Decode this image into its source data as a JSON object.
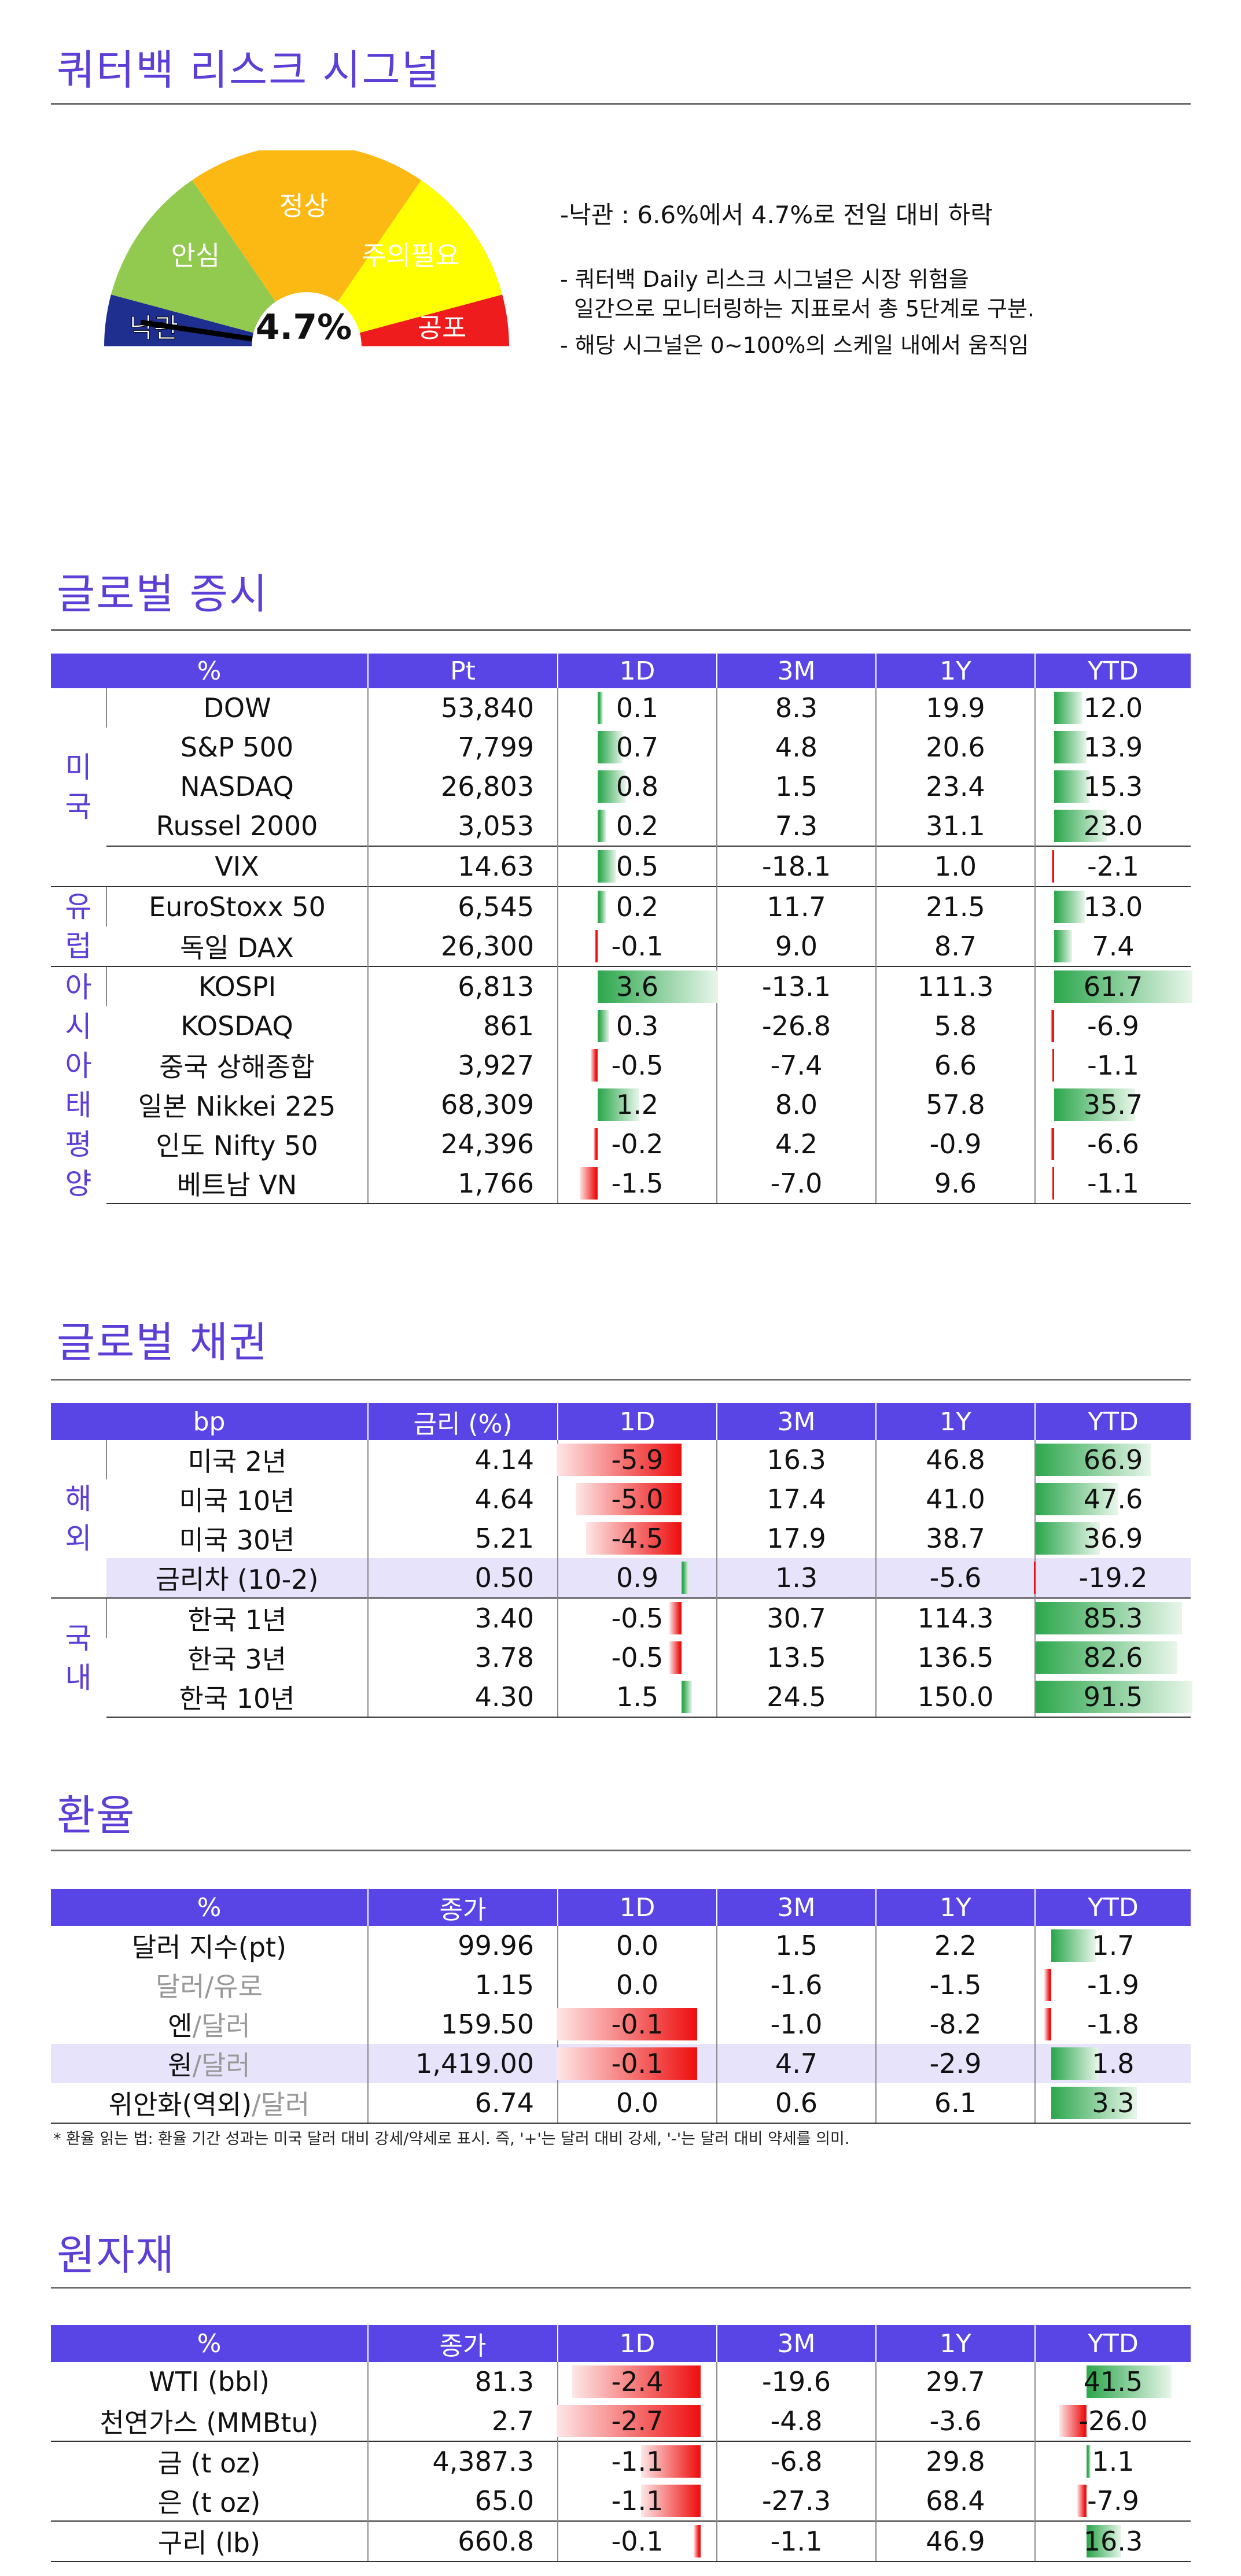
{
  "colors": {
    "accent": "#5b3fd6",
    "header_bg": "#5945e6",
    "positive": "#2fa84f",
    "negative": "#ee1111",
    "highlight_row": "#e6e3fb"
  },
  "signal": {
    "title": "쿼터백 리스크 시그널",
    "value": "4.7%",
    "level": 0.047,
    "zones": [
      "낙관",
      "안심",
      "정상",
      "주의필요",
      "공포"
    ],
    "main": "-낙관 : 6.6%에서 4.7%로 전일 대비 하락",
    "note1": "- 쿼터백 Daily 리스크 시그널은 시장 위험을",
    "note2": "  일간으로 모니터링하는 지표로서 총 5단계로 구분.",
    "note3": "- 해당 시그널은 0~100%의 스케일 내에서 움직임"
  },
  "equity": {
    "title": "글로벌 증시",
    "headers": [
      "%",
      "Pt",
      "1D",
      "3M",
      "1Y",
      "YTD"
    ],
    "groups": {
      "us": "미\n국",
      "eu": "유\n럽",
      "asia": "아\n시\n아\n태\n평\n양"
    },
    "rows": [
      {
        "name": "DOW",
        "pt": "53,840",
        "d1": "0.1",
        "m3": "8.3",
        "y1": "19.9",
        "ytd": "12.0"
      },
      {
        "name": "S&P 500",
        "pt": "7,799",
        "d1": "0.7",
        "m3": "4.8",
        "y1": "20.6",
        "ytd": "13.9"
      },
      {
        "name": "NASDAQ",
        "pt": "26,803",
        "d1": "0.8",
        "m3": "1.5",
        "y1": "23.4",
        "ytd": "15.3"
      },
      {
        "name": "Russel 2000",
        "pt": "3,053",
        "d1": "0.2",
        "m3": "7.3",
        "y1": "31.1",
        "ytd": "23.0"
      },
      {
        "name": "VIX",
        "pt": "14.63",
        "d1": "0.5",
        "m3": "-18.1",
        "y1": "1.0",
        "ytd": "-2.1"
      },
      {
        "name": "EuroStoxx 50",
        "pt": "6,545",
        "d1": "0.2",
        "m3": "11.7",
        "y1": "21.5",
        "ytd": "13.0"
      },
      {
        "name": "독일 DAX",
        "pt": "26,300",
        "d1": "-0.1",
        "m3": "9.0",
        "y1": "8.7",
        "ytd": "7.4"
      },
      {
        "name": "KOSPI",
        "pt": "6,813",
        "d1": "3.6",
        "m3": "-13.1",
        "y1": "111.3",
        "ytd": "61.7"
      },
      {
        "name": "KOSDAQ",
        "pt": "861",
        "d1": "0.3",
        "m3": "-26.8",
        "y1": "5.8",
        "ytd": "-6.9"
      },
      {
        "name": "중국 상해종합",
        "pt": "3,927",
        "d1": "-0.5",
        "m3": "-7.4",
        "y1": "6.6",
        "ytd": "-1.1"
      },
      {
        "name": "일본 Nikkei 225",
        "pt": "68,309",
        "d1": "1.2",
        "m3": "8.0",
        "y1": "57.8",
        "ytd": "35.7"
      },
      {
        "name": "인도 Nifty 50",
        "pt": "24,396",
        "d1": "-0.2",
        "m3": "4.2",
        "y1": "-0.9",
        "ytd": "-6.6"
      },
      {
        "name": "베트남 VN",
        "pt": "1,766",
        "d1": "-1.5",
        "m3": "-7.0",
        "y1": "9.6",
        "ytd": "-1.1"
      }
    ]
  },
  "bonds": {
    "title": "글로벌 채권",
    "headers": [
      "bp",
      "금리 (%)",
      "1D",
      "3M",
      "1Y",
      "YTD"
    ],
    "groups": {
      "overseas": "해\n외",
      "domestic": "국\n내"
    },
    "rows": [
      {
        "name": "미국 2년",
        "rate": "4.14",
        "d1": "-5.9",
        "m3": "16.3",
        "y1": "46.8",
        "ytd": "66.9"
      },
      {
        "name": "미국 10년",
        "rate": "4.64",
        "d1": "-5.0",
        "m3": "17.4",
        "y1": "41.0",
        "ytd": "47.6"
      },
      {
        "name": "미국 30년",
        "rate": "5.21",
        "d1": "-4.5",
        "m3": "17.9",
        "y1": "38.7",
        "ytd": "36.9"
      },
      {
        "name": "금리차 (10-2)",
        "rate": "0.50",
        "d1": "0.9",
        "m3": "1.3",
        "y1": "-5.6",
        "ytd": "-19.2"
      },
      {
        "name": "한국 1년",
        "rate": "3.40",
        "d1": "-0.5",
        "m3": "30.7",
        "y1": "114.3",
        "ytd": "85.3"
      },
      {
        "name": "한국 3년",
        "rate": "3.78",
        "d1": "-0.5",
        "m3": "13.5",
        "y1": "136.5",
        "ytd": "82.6"
      },
      {
        "name": "한국 10년",
        "rate": "4.30",
        "d1": "1.5",
        "m3": "24.5",
        "y1": "150.0",
        "ytd": "91.5"
      }
    ]
  },
  "fx": {
    "title": "환율",
    "headers": [
      "%",
      "종가",
      "1D",
      "3M",
      "1Y",
      "YTD"
    ],
    "rows": [
      {
        "n1": "달러 지수(pt)",
        "n2": "",
        "n3": "",
        "close": "99.96",
        "d1": "0.0",
        "m3": "1.5",
        "y1": "2.2",
        "ytd": "1.7"
      },
      {
        "n1": "달러",
        "n2": "/",
        "n3": "유로",
        "close": "1.15",
        "d1": "0.0",
        "m3": "-1.6",
        "y1": "-1.5",
        "ytd": "-1.9"
      },
      {
        "n1": "엔",
        "n2": "/",
        "n3": "달러",
        "close": "159.50",
        "d1": "-0.1",
        "m3": "-1.0",
        "y1": "-8.2",
        "ytd": "-1.8"
      },
      {
        "n1": "원",
        "n2": "/",
        "n3": "달러",
        "close": "1,419.00",
        "d1": "-0.1",
        "m3": "4.7",
        "y1": "-2.9",
        "ytd": "1.8"
      },
      {
        "n1": "위안화(역외)",
        "n2": "/",
        "n3": "달러",
        "close": "6.74",
        "d1": "0.0",
        "m3": "0.6",
        "y1": "6.1",
        "ytd": "3.3"
      }
    ],
    "note": "* 환율 읽는 법: 환율 기간 성과는 미국 달러 대비 강세/약세로 표시. 즉, '+'는 달러 대비 강세, '-'는 달러 대비 약세를 의미."
  },
  "commodities": {
    "title": "원자재",
    "headers": [
      "%",
      "종가",
      "1D",
      "3M",
      "1Y",
      "YTD"
    ],
    "rows": [
      {
        "name": "WTI (bbl)",
        "close": "81.3",
        "d1": "-2.4",
        "m3": "-19.6",
        "y1": "29.7",
        "ytd": "41.5"
      },
      {
        "name": "천연가스 (MMBtu)",
        "close": "2.7",
        "d1": "-2.7",
        "m3": "-4.8",
        "y1": "-3.6",
        "ytd": "-26.0"
      },
      {
        "name": "금 (t oz)",
        "close": "4,387.3",
        "d1": "-1.1",
        "m3": "-6.8",
        "y1": "29.8",
        "ytd": "1.1"
      },
      {
        "name": "은 (t oz)",
        "close": "65.0",
        "d1": "-1.1",
        "m3": "-27.3",
        "y1": "68.4",
        "ytd": "-7.9"
      },
      {
        "name": "구리 (lb)",
        "close": "660.8",
        "d1": "-0.1",
        "m3": "-1.1",
        "y1": "46.9",
        "ytd": "16.3"
      }
    ]
  }
}
